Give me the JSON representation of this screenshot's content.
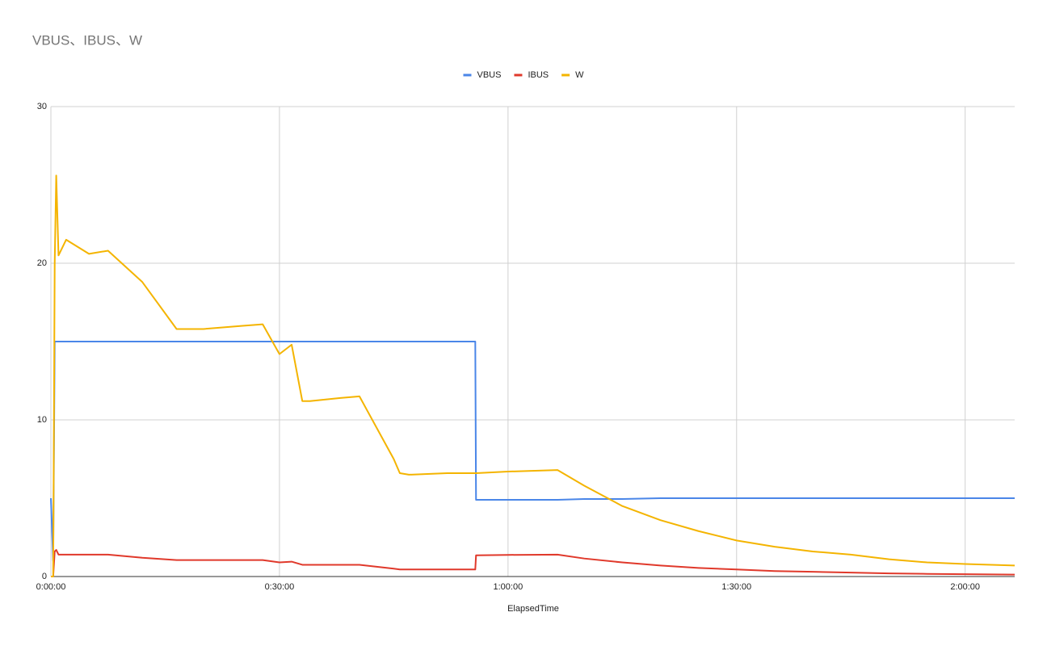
{
  "chart_data": {
    "type": "line",
    "title": "VBUS、IBUS、W",
    "x_label": "ElapsedTime",
    "x": [
      0,
      0.3,
      0.5,
      0.7,
      1,
      2,
      5,
      7.5,
      12,
      16.5,
      20,
      25,
      27.8,
      30,
      31.6,
      33,
      34,
      38,
      40.5,
      45,
      45.8,
      47,
      52,
      55.7,
      55.8,
      60,
      66.5,
      70,
      75,
      80,
      85,
      90,
      95,
      100,
      105,
      110,
      115,
      120,
      126.5
    ],
    "series": [
      {
        "name": "VBUS",
        "color": "#4a86e8",
        "values": [
          5,
          1,
          15,
          15,
          15,
          15,
          15,
          15,
          15,
          15,
          15,
          15,
          15,
          15,
          15,
          15,
          15,
          15,
          15,
          15,
          15,
          15,
          15,
          15,
          4.9,
          4.9,
          4.9,
          4.95,
          4.95,
          5,
          5,
          5,
          5,
          5,
          5,
          5,
          5,
          5,
          5
        ]
      },
      {
        "name": "IBUS",
        "color": "#e0392b",
        "values": [
          0,
          0,
          1.6,
          1.7,
          1.4,
          1.4,
          1.4,
          1.4,
          1.2,
          1.05,
          1.05,
          1.05,
          1.05,
          0.9,
          0.95,
          0.75,
          0.75,
          0.75,
          0.75,
          0.5,
          0.45,
          0.45,
          0.45,
          0.45,
          1.35,
          1.38,
          1.4,
          1.15,
          0.9,
          0.7,
          0.55,
          0.45,
          0.35,
          0.3,
          0.25,
          0.2,
          0.17,
          0.15,
          0.12
        ]
      },
      {
        "name": "W",
        "color": "#f4b400",
        "values": [
          0,
          0,
          20,
          25.6,
          20.5,
          21.5,
          20.6,
          20.8,
          18.8,
          15.8,
          15.8,
          16,
          16.1,
          14.2,
          14.8,
          11.2,
          11.2,
          11.4,
          11.5,
          7.5,
          6.6,
          6.5,
          6.6,
          6.6,
          6.6,
          6.7,
          6.8,
          5.8,
          4.5,
          3.6,
          2.9,
          2.3,
          1.9,
          1.6,
          1.4,
          1.1,
          0.9,
          0.8,
          0.7
        ]
      }
    ],
    "xlim": [
      0,
      126.5
    ],
    "xticks": [
      {
        "value": 0,
        "label": "0:00:00"
      },
      {
        "value": 30,
        "label": "0:30:00"
      },
      {
        "value": 60,
        "label": "1:00:00"
      },
      {
        "value": 90,
        "label": "1:30:00"
      },
      {
        "value": 120,
        "label": "2:00:00"
      }
    ],
    "ylim": [
      0,
      30
    ],
    "yticks": [
      0,
      10,
      20,
      30
    ],
    "grid": true,
    "legend": "top"
  }
}
